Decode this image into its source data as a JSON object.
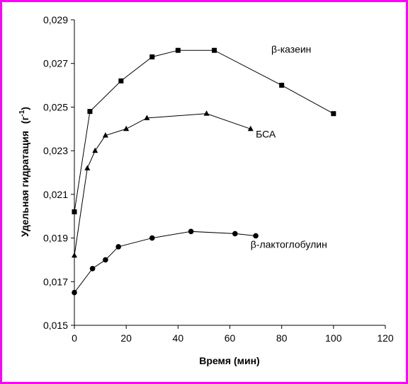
{
  "chart_data": {
    "type": "line",
    "xlabel": "Время (мин)",
    "ylabel": "Удельная гидратация",
    "ylabel_unit_base": "(г",
    "ylabel_unit_exp": "-1",
    "ylabel_unit_close": ")",
    "xlim": [
      0,
      120
    ],
    "ylim": [
      0.015,
      0.029
    ],
    "x_ticks": [
      0,
      20,
      40,
      60,
      80,
      100,
      120
    ],
    "x_tick_labels": [
      "0",
      "20",
      "40",
      "60",
      "80",
      "100",
      "120"
    ],
    "y_ticks": [
      0.015,
      0.017,
      0.019,
      0.021,
      0.023,
      0.025,
      0.027,
      0.029
    ],
    "y_tick_labels": [
      "0,015",
      "0,017",
      "0,019",
      "0,021",
      "0,023",
      "0,025",
      "0,027",
      "0,029"
    ],
    "grid": false,
    "legend": "inline labels",
    "series": [
      {
        "name": "β-казеин",
        "marker": "square",
        "x": [
          0,
          6,
          18,
          30,
          40,
          54,
          80,
          100
        ],
        "y": [
          0.0202,
          0.0248,
          0.0262,
          0.0273,
          0.0276,
          0.0276,
          0.026,
          0.0247
        ],
        "label_anchor": [
          76,
          0.0275
        ]
      },
      {
        "name": "БСА",
        "marker": "triangle",
        "x": [
          0,
          5,
          8,
          12,
          20,
          28,
          51,
          68
        ],
        "y": [
          0.0182,
          0.0222,
          0.023,
          0.0237,
          0.024,
          0.0245,
          0.0247,
          0.024
        ],
        "label_anchor": [
          70,
          0.0236
        ]
      },
      {
        "name": "β-лактоглобулин",
        "marker": "circle",
        "x": [
          0,
          7,
          12,
          17,
          30,
          45,
          62,
          70
        ],
        "y": [
          0.0165,
          0.0176,
          0.018,
          0.0186,
          0.019,
          0.0193,
          0.0192,
          0.0191
        ],
        "label_anchor": [
          68,
          0.01855
        ]
      }
    ],
    "colors": {
      "line": "#000000",
      "marker": "#000000",
      "frame": "#ff00ff"
    }
  }
}
